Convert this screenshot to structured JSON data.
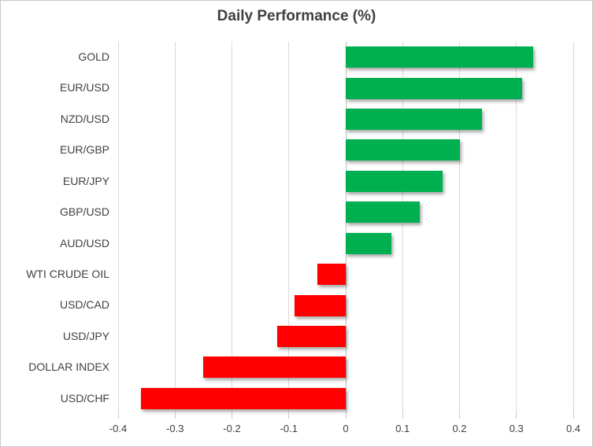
{
  "chart_data": {
    "type": "bar",
    "orientation": "horizontal",
    "title": "Daily Performance (%)",
    "categories": [
      "GOLD",
      "EUR/USD",
      "NZD/USD",
      "EUR/GBP",
      "EUR/JPY",
      "GBP/USD",
      "AUD/USD",
      "WTI CRUDE OIL",
      "USD/CAD",
      "USD/JPY",
      "DOLLAR INDEX",
      "USD/CHF"
    ],
    "values": [
      0.33,
      0.31,
      0.24,
      0.2,
      0.17,
      0.13,
      0.08,
      -0.05,
      -0.09,
      -0.12,
      -0.25,
      -0.36
    ],
    "xlabel": "",
    "ylabel": "",
    "xlim": [
      -0.4,
      0.4
    ],
    "x_ticks": [
      -0.4,
      -0.3,
      -0.2,
      -0.1,
      0,
      0.1,
      0.2,
      0.3,
      0.4
    ],
    "x_tick_labels": [
      "-0.4",
      "-0.3",
      "-0.2",
      "-0.1",
      "0",
      "0.1",
      "0.2",
      "0.3",
      "0.4"
    ],
    "grid": true,
    "legend": false,
    "colors": {
      "positive_bar": "#00B050",
      "negative_bar": "#FF0000",
      "gridline": "#D9D9D9",
      "zero_axis_line": "#C0C0C0",
      "tick_mark": "#C6C6C6",
      "title_text": "#3F3F3F",
      "label_text": "#404040",
      "chart_border": "#C9C9C9"
    }
  }
}
